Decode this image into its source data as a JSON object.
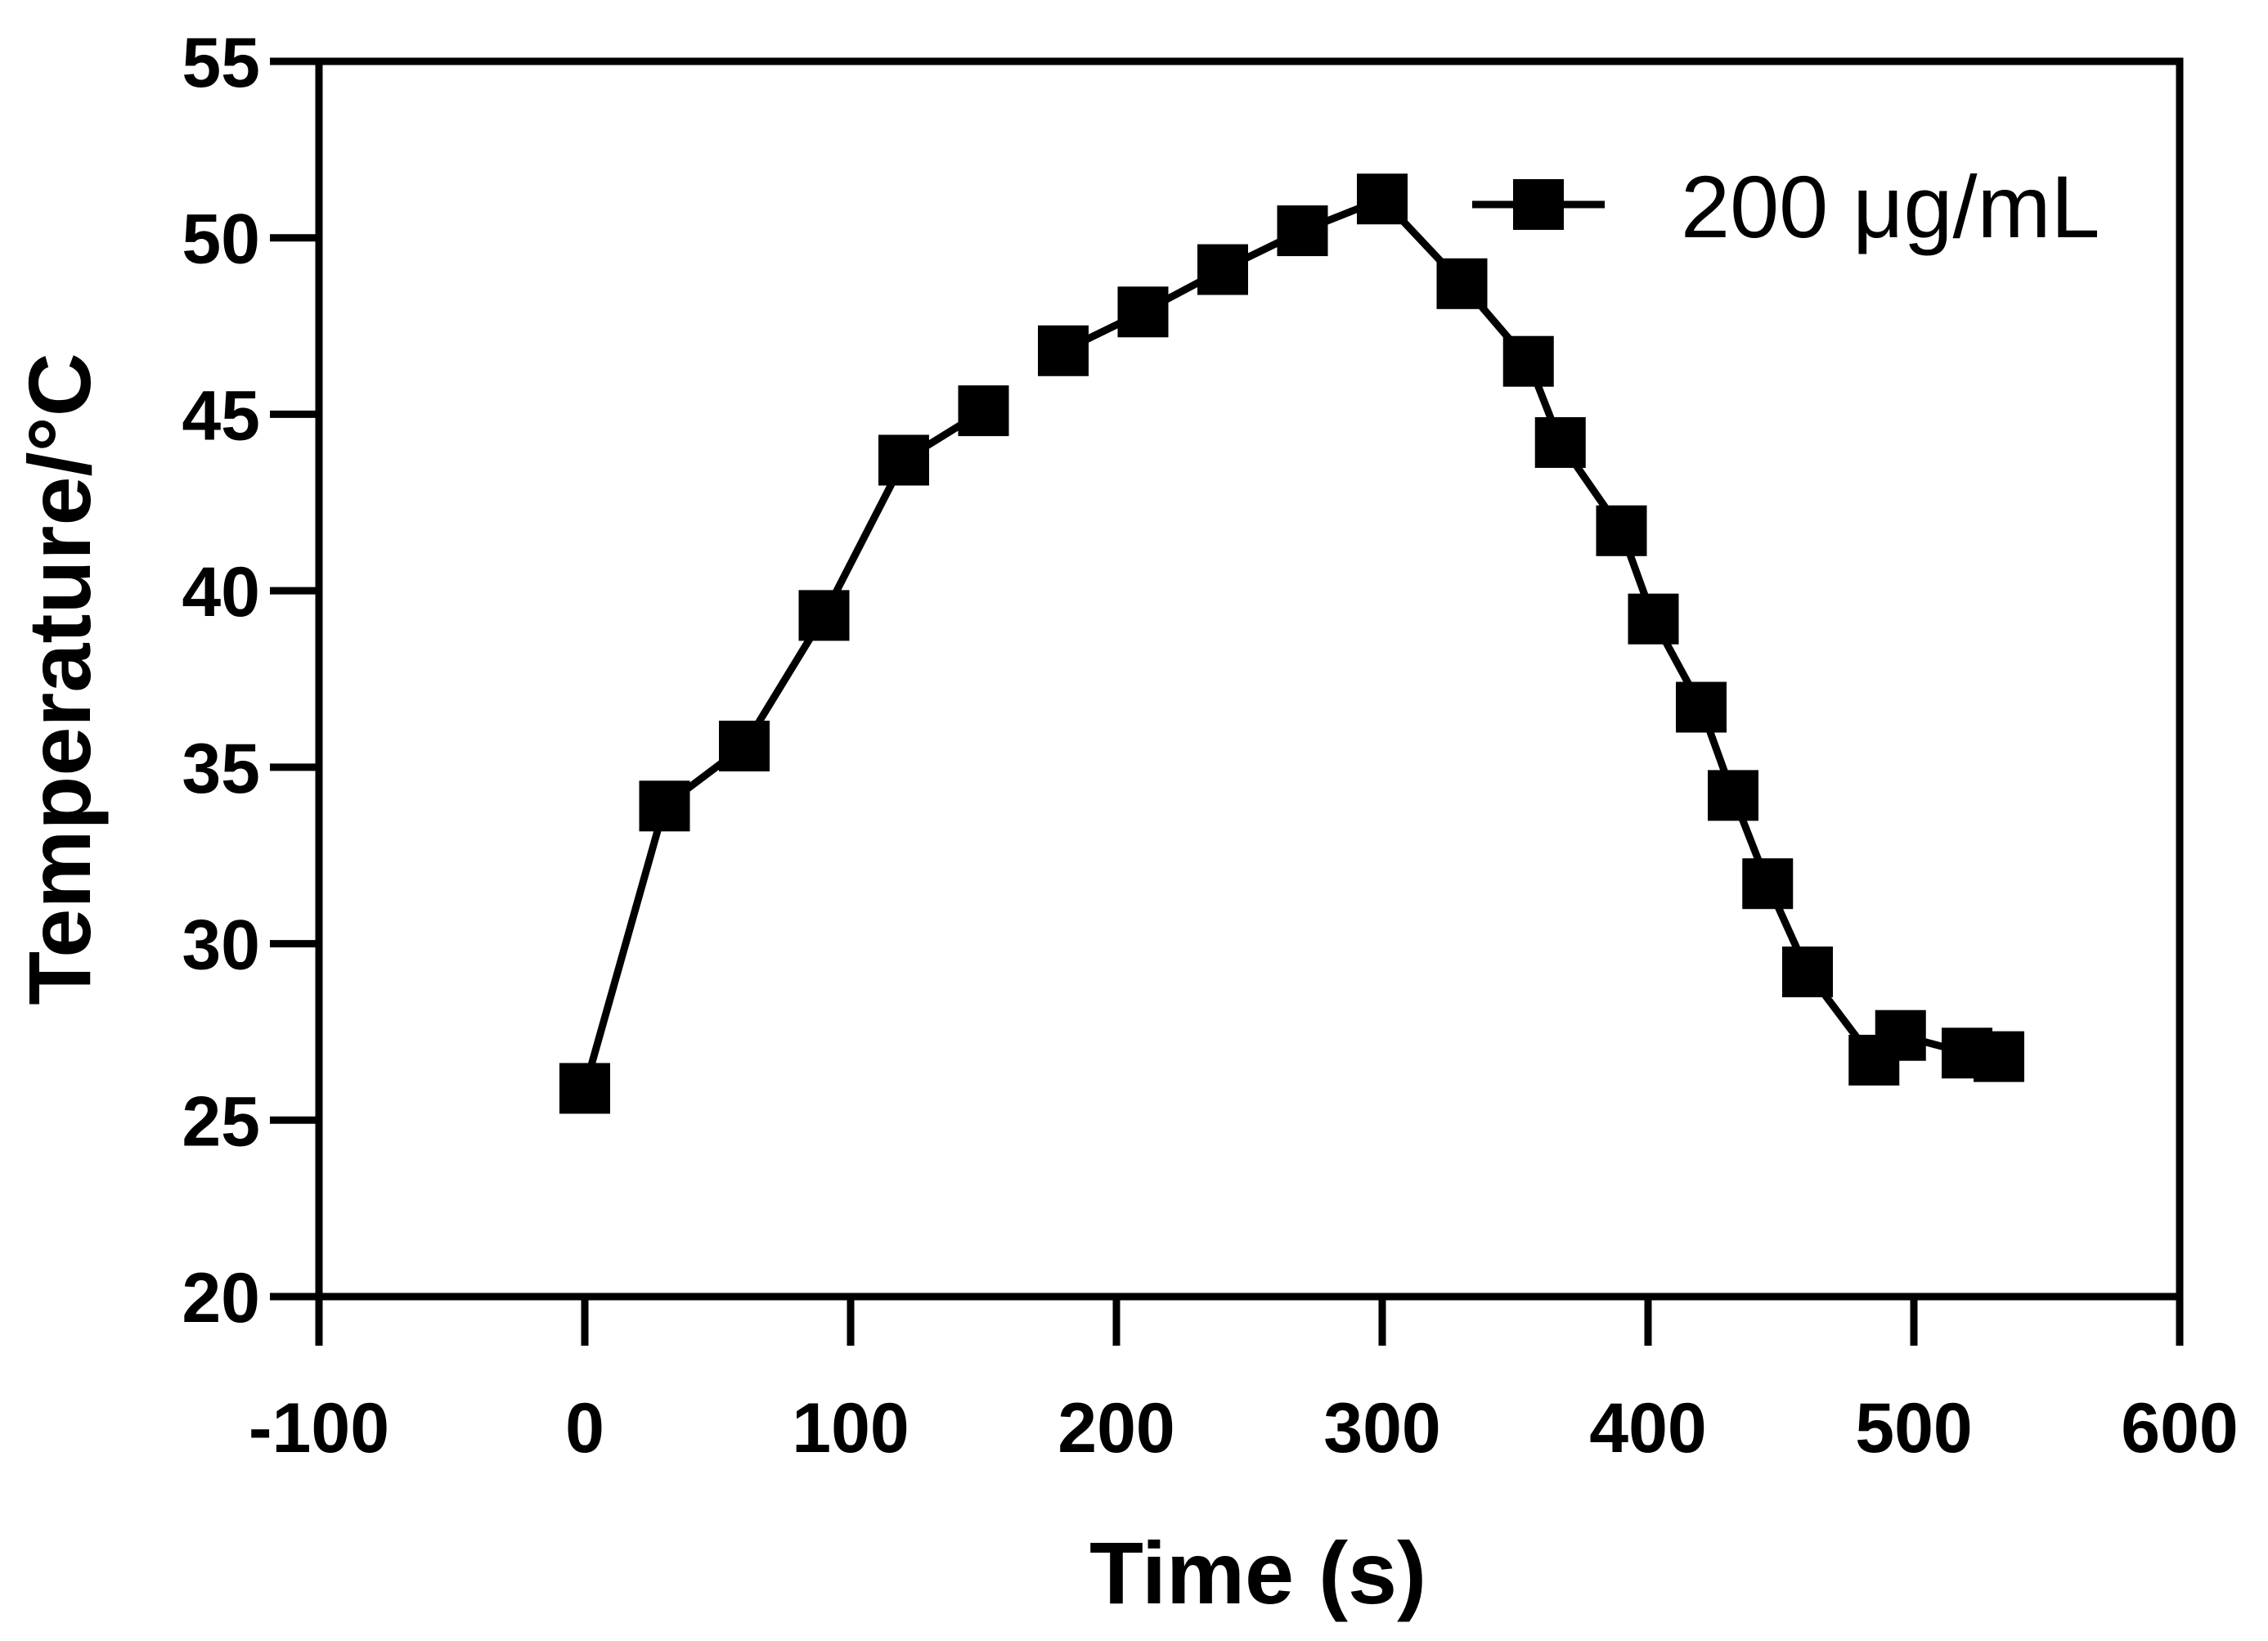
{
  "chart_data": {
    "type": "line",
    "title": "",
    "xlabel": "Time (s)",
    "ylabel": "Temperature/°C",
    "xlim": [
      -100,
      600
    ],
    "ylim": [
      20,
      55
    ],
    "xticks": [
      -100,
      0,
      100,
      200,
      300,
      400,
      500,
      600
    ],
    "yticks": [
      20,
      25,
      30,
      35,
      40,
      45,
      50,
      55
    ],
    "grid": false,
    "legend_position": "top-right",
    "colors": {
      "line": "#000000",
      "marker": "#000000",
      "axis": "#000000",
      "background": "#ffffff"
    },
    "marker": "square",
    "series": [
      {
        "name": "200 μg/mL",
        "segments": [
          [
            {
              "x": 0,
              "y": 25.9
            },
            {
              "x": 30,
              "y": 33.9
            },
            {
              "x": 60,
              "y": 35.6
            },
            {
              "x": 90,
              "y": 39.3
            },
            {
              "x": 120,
              "y": 43.7
            },
            {
              "x": 150,
              "y": 45.1
            }
          ],
          [
            {
              "x": 180,
              "y": 46.8
            },
            {
              "x": 210,
              "y": 47.9
            },
            {
              "x": 240,
              "y": 49.1
            },
            {
              "x": 270,
              "y": 50.2
            },
            {
              "x": 300,
              "y": 51.1
            },
            {
              "x": 330,
              "y": 48.7
            },
            {
              "x": 355,
              "y": 46.5
            },
            {
              "x": 367,
              "y": 44.2
            },
            {
              "x": 390,
              "y": 41.7
            },
            {
              "x": 402,
              "y": 39.2
            },
            {
              "x": 420,
              "y": 36.7
            },
            {
              "x": 432,
              "y": 34.2
            },
            {
              "x": 445,
              "y": 31.7
            },
            {
              "x": 460,
              "y": 29.2
            },
            {
              "x": 485,
              "y": 26.7
            },
            {
              "x": 495,
              "y": 27.4
            },
            {
              "x": 520,
              "y": 26.9
            },
            {
              "x": 532,
              "y": 26.8
            }
          ]
        ]
      }
    ]
  }
}
